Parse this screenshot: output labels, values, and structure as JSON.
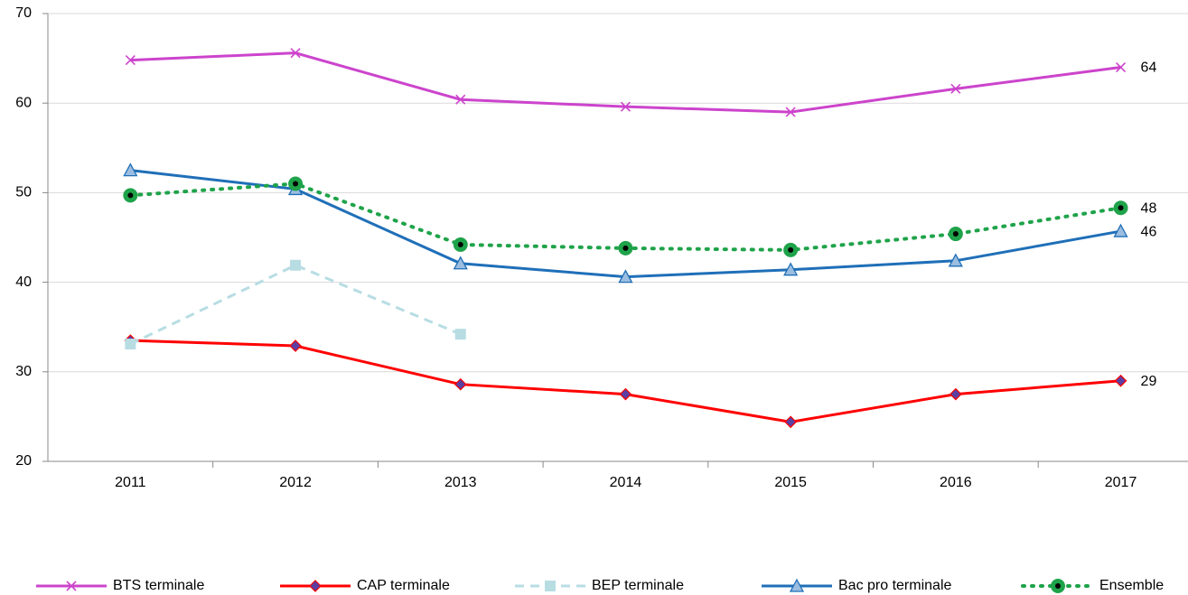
{
  "chart_data": {
    "type": "line",
    "categories": [
      "2011",
      "2012",
      "2013",
      "2014",
      "2015",
      "2016",
      "2017"
    ],
    "series": [
      {
        "name": "BTS terminale",
        "color": "#cc44cc",
        "marker": "x",
        "dash": "solid",
        "values": [
          64.8,
          65.6,
          60.4,
          59.6,
          59.0,
          61.6,
          64.0
        ],
        "value_labels": [
          null,
          null,
          null,
          null,
          null,
          null,
          "64"
        ]
      },
      {
        "name": "CAP terminale",
        "color": "#ff0000",
        "marker": "diamond",
        "dash": "solid",
        "values": [
          33.5,
          32.9,
          28.6,
          27.5,
          24.4,
          27.5,
          29.0
        ],
        "value_labels": [
          null,
          null,
          null,
          null,
          null,
          null,
          "29"
        ]
      },
      {
        "name": "BEP terminale",
        "color": "#b7dde3",
        "marker": "square",
        "dash": "dashed",
        "values": [
          33.1,
          41.9,
          34.2,
          null,
          null,
          null,
          null
        ]
      },
      {
        "name": "Bac pro terminale",
        "color": "#1f6fb8",
        "marker": "triangle",
        "dash": "solid",
        "values": [
          52.5,
          50.4,
          42.1,
          40.6,
          41.4,
          42.4,
          45.7
        ],
        "value_labels": [
          null,
          null,
          null,
          null,
          null,
          null,
          "46"
        ]
      },
      {
        "name": "Ensemble",
        "color": "#1fa34a",
        "marker": "circle",
        "dash": "dotted",
        "values": [
          49.7,
          51.0,
          44.2,
          43.8,
          43.6,
          45.4,
          48.3
        ],
        "value_labels": [
          null,
          null,
          null,
          null,
          null,
          null,
          "48"
        ]
      }
    ],
    "ylim": [
      20,
      70
    ],
    "yticks": [
      20,
      30,
      40,
      50,
      60,
      70
    ],
    "grid": true,
    "legend": "bottom"
  }
}
